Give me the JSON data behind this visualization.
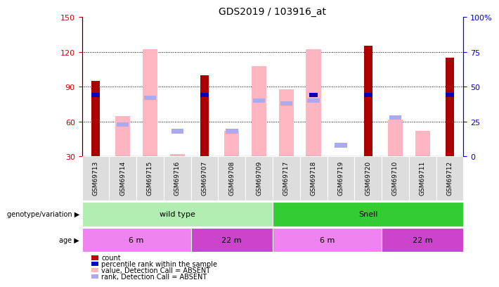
{
  "title": "GDS2019 / 103916_at",
  "samples": [
    "GSM69713",
    "GSM69714",
    "GSM69715",
    "GSM69716",
    "GSM69707",
    "GSM69708",
    "GSM69709",
    "GSM69717",
    "GSM69718",
    "GSM69719",
    "GSM69720",
    "GSM69710",
    "GSM69711",
    "GSM69712"
  ],
  "count_values": [
    95,
    null,
    null,
    null,
    100,
    null,
    null,
    null,
    null,
    null,
    125,
    null,
    null,
    115
  ],
  "percentile_rank": [
    44,
    null,
    null,
    null,
    44,
    null,
    null,
    null,
    44,
    null,
    44,
    null,
    null,
    44
  ],
  "pink_bar_top": [
    null,
    65,
    122,
    32,
    null,
    52,
    108,
    88,
    122,
    null,
    null,
    62,
    52,
    null
  ],
  "light_blue_rank": [
    null,
    23,
    42,
    18,
    null,
    18,
    40,
    38,
    40,
    8,
    null,
    28,
    null,
    null
  ],
  "ylim_left": [
    30,
    150
  ],
  "ylim_right": [
    0,
    100
  ],
  "yticks_left": [
    30,
    60,
    90,
    120,
    150
  ],
  "yticks_right": [
    0,
    25,
    50,
    75,
    100
  ],
  "genotype_groups": [
    {
      "label": "wild type",
      "start": 0,
      "end": 6,
      "color": "#B2EEB2"
    },
    {
      "label": "Snell",
      "start": 7,
      "end": 13,
      "color": "#33CC33"
    }
  ],
  "age_groups": [
    {
      "label": "6 m",
      "start": 0,
      "end": 3,
      "color": "#EE82EE"
    },
    {
      "label": "22 m",
      "start": 4,
      "end": 6,
      "color": "#CC44CC"
    },
    {
      "label": "6 m",
      "start": 7,
      "end": 10,
      "color": "#EE82EE"
    },
    {
      "label": "22 m",
      "start": 11,
      "end": 13,
      "color": "#CC44CC"
    }
  ],
  "legend_items": [
    {
      "label": "count",
      "color": "#CC0000"
    },
    {
      "label": "percentile rank within the sample",
      "color": "#0000CC"
    },
    {
      "label": "value, Detection Call = ABSENT",
      "color": "#FFB6C1"
    },
    {
      "label": "rank, Detection Call = ABSENT",
      "color": "#AAAAEE"
    }
  ],
  "count_color": "#AA0000",
  "percentile_color": "#0000BB",
  "pink_color": "#FFB6C1",
  "light_blue_color": "#AAAAEE",
  "axis_color_left": "#CC0000",
  "axis_color_right": "#0000CC",
  "tick_bg_color": "#DDDDDD"
}
